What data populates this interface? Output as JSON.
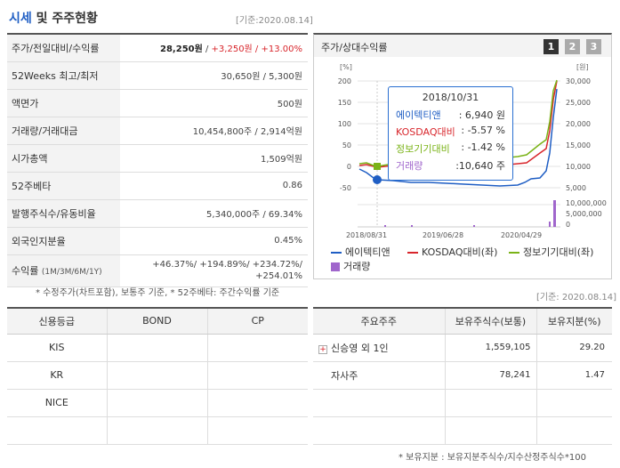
{
  "header": {
    "title_hl": "시세",
    "title_rest": " 및 주주현황",
    "base_date": "[기준:2020.08.14]"
  },
  "quote": {
    "rows": [
      {
        "label": "주가/전일대비/수익률",
        "price": "28,250원",
        "sep": " / ",
        "change": "+3,250원 / +13.00%"
      },
      {
        "label": "52Weeks 최고/최저",
        "value": "30,650원 / 5,300원"
      },
      {
        "label": "액면가",
        "value": "500원"
      },
      {
        "label": "거래량/거래대금",
        "value": "10,454,800주 / 2,914억원"
      },
      {
        "label": "시가총액",
        "value": "1,509억원"
      },
      {
        "label": "52주베타",
        "value": "0.86"
      },
      {
        "label": "발행주식수/유동비율",
        "value": "5,340,000주 / 69.34%"
      },
      {
        "label": "외국인지분율",
        "value": "0.45%"
      }
    ],
    "returns": {
      "label": "수익률",
      "label_sub": "(1M/3M/6M/1Y)",
      "line1": "+46.37%/ +194.89%/ +234.72%/",
      "line2": "+254.01%"
    },
    "note": "* 수정주가(차트포함), 보통주 기준, * 52주베타: 주간수익률 기준"
  },
  "chart": {
    "header": "주가/상대수익률",
    "pages": [
      "1",
      "2",
      "3"
    ],
    "left_unit": "[%]",
    "right_unit": "[원]",
    "left_ticks": [
      "200",
      "150",
      "100",
      "50",
      "0",
      "-50"
    ],
    "right_ticks": [
      "30,000",
      "25,000",
      "20,000",
      "15,000",
      "10,000",
      "5,000"
    ],
    "vol_ticks": [
      "10,000,000",
      "5,000,000",
      "0"
    ],
    "x_ticks": [
      "2018/08/31",
      "2019/06/28",
      "2020/04/29"
    ],
    "tooltip": {
      "date": "2018/10/31",
      "rows": [
        {
          "name": "에이텍티앤",
          "value": ": 6,940 원",
          "color": "#1f5ec4"
        },
        {
          "name": "KOSDAQ대비",
          "value": ": -5.57 %",
          "color": "#d8262c"
        },
        {
          "name": "정보기기대비",
          "value": ": -1.42 %",
          "color": "#7ab317"
        },
        {
          "name": "거래량",
          "value": ":10,640 주",
          "color": "#a066cc"
        }
      ]
    },
    "legend": [
      {
        "label": "에이텍티앤",
        "color": "#1f5ec4"
      },
      {
        "label": "KOSDAQ대비(좌)",
        "color": "#d8262c"
      },
      {
        "label": "정보기기대비(좌)",
        "color": "#7ab317"
      },
      {
        "label": "거래량",
        "color": "#a066cc"
      }
    ],
    "base_date": "[기준: 2020.08.14]"
  },
  "credit": {
    "headers": [
      "신용등급",
      "BOND",
      "CP"
    ],
    "rows": [
      [
        "KIS",
        "",
        ""
      ],
      [
        "KR",
        "",
        ""
      ],
      [
        "NICE",
        "",
        ""
      ],
      [
        "",
        "",
        ""
      ]
    ]
  },
  "holders": {
    "headers": [
      "주요주주",
      "보유주식수(보통)",
      "보유지분(%)"
    ],
    "rows": [
      {
        "name": "신승영 외 1인",
        "shares": "1,559,105",
        "pct": "29.20",
        "expand": "+"
      },
      {
        "name": "자사주",
        "shares": "78,241",
        "pct": "1.47"
      },
      {
        "name": "",
        "shares": "",
        "pct": ""
      },
      {
        "name": "",
        "shares": "",
        "pct": ""
      }
    ],
    "note": "* 보유지분 : 보유지분주식수/지수산정주식수*100"
  }
}
